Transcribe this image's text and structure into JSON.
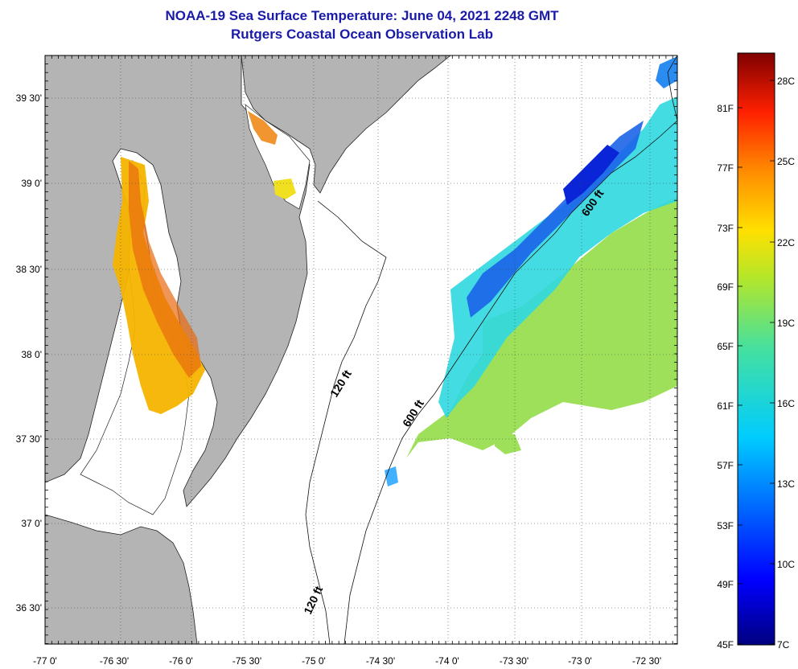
{
  "titles": {
    "line1": "NOAA-19 Sea Surface Temperature:  June 04, 2021 2248 GMT",
    "line2": "Rutgers Coastal Ocean Observation Lab"
  },
  "map": {
    "lat_labels": [
      "39 30'",
      "39 0'",
      "38 30'",
      "38 0'",
      "37 30'",
      "37 0'",
      "36 30'"
    ],
    "lon_labels": [
      "-77 0'",
      "-76 30'",
      "-76 0'",
      "-75 30'",
      "-75 0'",
      "-74 30'",
      "-74 0'",
      "-73 30'",
      "-73 0'",
      "-72 30'"
    ],
    "contour_labels": [
      "600 ft",
      "120 ft",
      "600 ft",
      "120 ft"
    ],
    "colors": {
      "land": "#b4b4b4",
      "ocean": "#ffffff",
      "grid": "#555555"
    }
  },
  "colorbar": {
    "f_labels": [
      "81F",
      "77F",
      "73F",
      "69F",
      "65F",
      "61F",
      "57F",
      "53F",
      "49F",
      "45F"
    ],
    "c_labels": [
      "28C",
      "25C",
      "22C",
      "19C",
      "16C",
      "13C",
      "10C",
      "7C"
    ],
    "range_f": [
      45,
      83
    ],
    "range_c": [
      7,
      28.3
    ]
  }
}
